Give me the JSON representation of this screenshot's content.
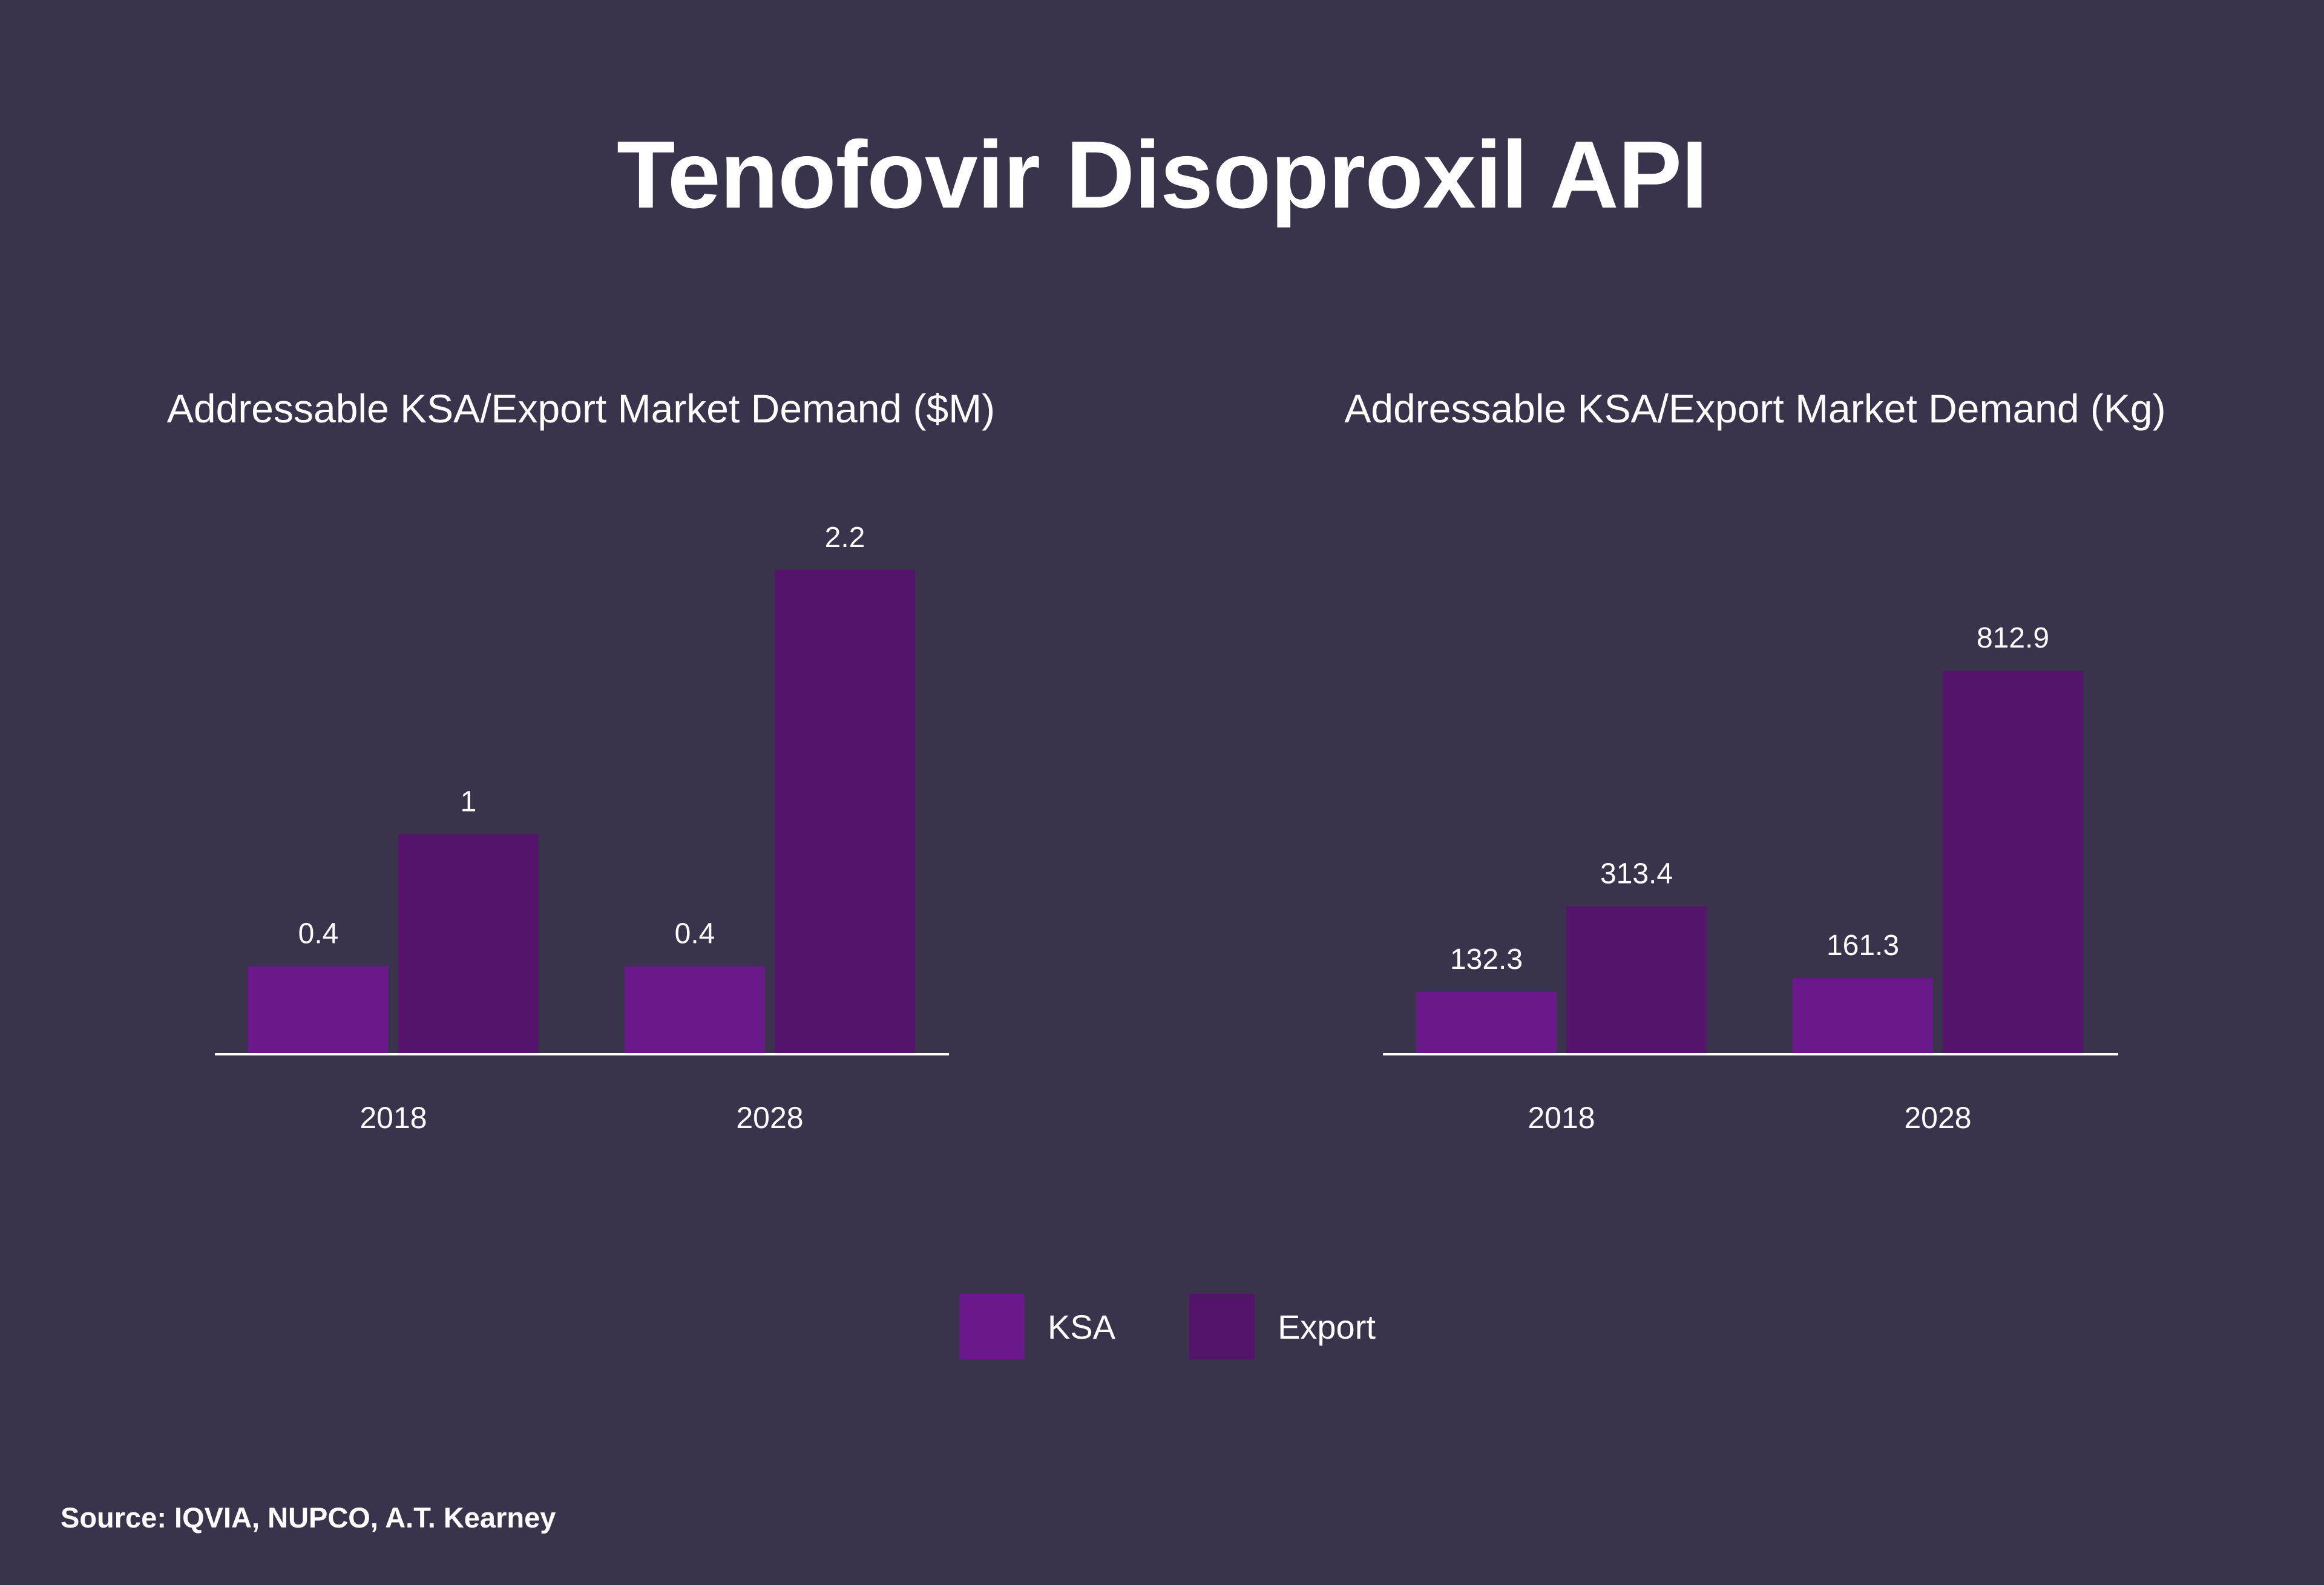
{
  "title": "Tenofovir Disoproxil API",
  "source": "Source: IQVIA, NUPCO, A.T. Kearney",
  "colors": {
    "background": "#39344b",
    "ksa": "#69198a",
    "export": "#54146c",
    "axis": "#ffffff",
    "text": "#ffffff"
  },
  "legend": [
    {
      "label": "KSA",
      "color": "#69198a"
    },
    {
      "label": "Export",
      "color": "#54146c"
    }
  ],
  "chart_data": [
    {
      "type": "bar",
      "title": "Addressable KSA/Export Market Demand ($M)",
      "categories": [
        "2018",
        "2028"
      ],
      "series": [
        {
          "name": "KSA",
          "values": [
            0.4,
            0.4
          ],
          "labels": [
            "0.4",
            "0.4"
          ]
        },
        {
          "name": "Export",
          "values": [
            1,
            2.2
          ],
          "labels": [
            "1",
            "2.2"
          ]
        }
      ],
      "ylim": [
        0,
        2.2
      ],
      "grid": false,
      "legend_position": "bottom"
    },
    {
      "type": "bar",
      "title": "Addressable KSA/Export Market Demand (Kg)",
      "categories": [
        "2018",
        "2028"
      ],
      "series": [
        {
          "name": "KSA",
          "values": [
            132.3,
            161.3
          ],
          "labels": [
            "132.3",
            "161.3"
          ]
        },
        {
          "name": "Export",
          "values": [
            313.4,
            812.9
          ],
          "labels": [
            "313.4",
            "812.9"
          ]
        }
      ],
      "ylim": [
        0,
        812.9
      ],
      "grid": false,
      "legend_position": "bottom"
    }
  ]
}
